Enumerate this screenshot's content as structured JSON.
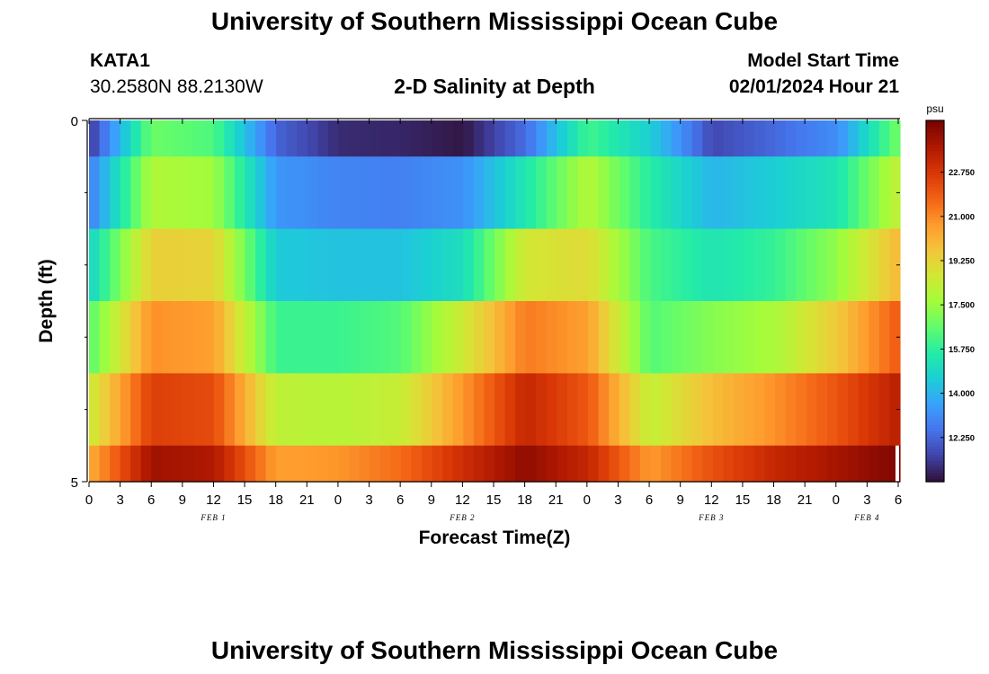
{
  "title": "University of Southern Mississippi Ocean Cube",
  "footer_title": "University of Southern Mississippi Ocean Cube",
  "station": {
    "id": "KATA1",
    "coordinates": "30.2580N  88.2130W"
  },
  "subtitle": "2-D Salinity at Depth",
  "model_start": {
    "label": "Model Start Time",
    "value": "02/01/2024 Hour 21"
  },
  "chart_data": {
    "type": "heatmap",
    "title": "2-D Salinity at Depth",
    "xlabel": "Forecast Time(Z)",
    "ylabel": "Depth (ft)",
    "ylim": [
      0,
      5
    ],
    "y_ticks": [
      "0",
      "5"
    ],
    "x_tick_labels": [
      "0",
      "3",
      "6",
      "9",
      "12",
      "15",
      "18",
      "21",
      "0",
      "3",
      "6",
      "9",
      "12",
      "15",
      "18",
      "21",
      "0",
      "3",
      "6",
      "9",
      "12",
      "15",
      "18",
      "21",
      "0",
      "3",
      "6"
    ],
    "date_labels": [
      {
        "label": "FEB 1",
        "tick_index": 4
      },
      {
        "label": "FEB 2",
        "tick_index": 12
      },
      {
        "label": "FEB 3",
        "tick_index": 20
      },
      {
        "label": "FEB 4",
        "tick_index": 25
      }
    ],
    "depth_layers": [
      0.5,
      1.5,
      2.5,
      3.5,
      4.5,
      5.0
    ],
    "time_hours_from_start": [
      0,
      6,
      12,
      18,
      24,
      30,
      36,
      42,
      48,
      54,
      60,
      66,
      72,
      78
    ],
    "salinity_psu": [
      [
        11.2,
        16.8,
        16.3,
        12.2,
        11.0,
        10.9,
        10.6,
        12.4,
        16.1,
        14.6,
        11.6,
        12.3,
        13.1,
        17.0
      ],
      [
        12.7,
        17.9,
        17.6,
        13.3,
        12.9,
        12.8,
        13.2,
        15.4,
        18.0,
        15.6,
        14.0,
        14.6,
        15.3,
        18.4
      ],
      [
        14.7,
        19.4,
        19.3,
        14.5,
        14.3,
        14.3,
        15.1,
        18.7,
        19.1,
        16.2,
        15.3,
        15.9,
        17.4,
        20.1
      ],
      [
        16.4,
        20.9,
        20.6,
        16.0,
        16.0,
        16.4,
        18.6,
        21.3,
        20.6,
        16.4,
        17.2,
        17.8,
        19.6,
        22.0
      ],
      [
        18.4,
        22.6,
        22.3,
        18.2,
        18.1,
        18.4,
        20.8,
        23.3,
        22.0,
        18.3,
        19.9,
        20.9,
        22.1,
        23.6
      ],
      [
        20.2,
        24.1,
        23.8,
        20.6,
        20.8,
        21.6,
        23.1,
        24.4,
        23.3,
        20.7,
        22.2,
        23.3,
        24.0,
        24.7
      ]
    ],
    "colorbar": {
      "unit": "psu",
      "min": 10.5,
      "max": 24.8,
      "ticks": [
        "12.250",
        "14.000",
        "15.750",
        "17.500",
        "19.250",
        "21.000",
        "22.750"
      ]
    }
  },
  "colors": {
    "colormap": [
      "#30123b",
      "#4145ab",
      "#4675ed",
      "#39a2fc",
      "#1bcfd4",
      "#24eca6",
      "#61fc6c",
      "#a4fc3b",
      "#d1e834",
      "#f3c63a",
      "#fe9b2d",
      "#f36315",
      "#d93806",
      "#b11901",
      "#7a0402"
    ]
  }
}
